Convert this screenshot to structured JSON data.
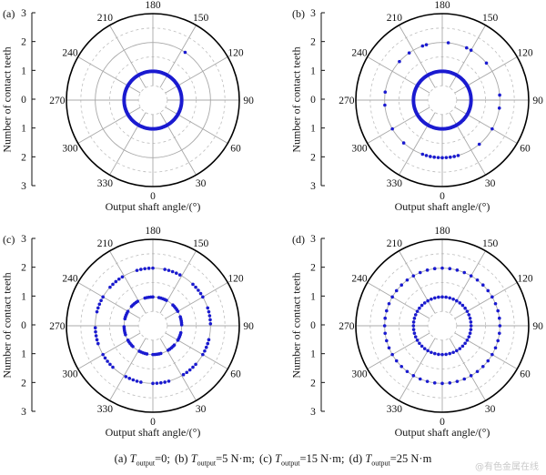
{
  "chart_data": [
    {
      "type": "scatter",
      "coordinate_system": "polar",
      "panel_label": "(a)",
      "xlabel": "Output shaft angle/(°)",
      "ylabel": "Number of contact teeth",
      "r_ticks": [
        "3",
        "2",
        "1",
        "0",
        "1",
        "2",
        "3"
      ],
      "angle_ticks": [
        "0",
        "30",
        "60",
        "90",
        "120",
        "150",
        "180",
        "210",
        "240",
        "270",
        "300",
        "330"
      ],
      "grid": true,
      "points": [
        {
          "r": 1,
          "angle_range": [
            0,
            360
          ],
          "pattern": "full"
        },
        {
          "r": 2,
          "angles": [
            146
          ]
        }
      ]
    },
    {
      "type": "scatter",
      "coordinate_system": "polar",
      "panel_label": "(b)",
      "xlabel": "Output shaft angle/(°)",
      "ylabel": "Number of contact teeth",
      "r_ticks": [
        "3",
        "2",
        "1",
        "0",
        "1",
        "2",
        "3"
      ],
      "angle_ticks": [
        "0",
        "30",
        "60",
        "90",
        "120",
        "150",
        "180",
        "210",
        "240",
        "270",
        "300",
        "330"
      ],
      "grid": true,
      "points": [
        {
          "r": 1,
          "angle_range": [
            0,
            360
          ],
          "pattern": "full"
        },
        {
          "r": 2,
          "angles": [
            -20,
            -16,
            -12,
            -8,
            -4,
            0,
            4,
            8,
            12,
            16,
            40,
            60,
            82,
            95,
            130,
            150,
            155,
            174,
            196,
            200,
            215,
            228,
            262,
            275,
            300,
            318
          ]
        }
      ]
    },
    {
      "type": "scatter",
      "coordinate_system": "polar",
      "panel_label": "(c)",
      "xlabel": "Output shaft angle/(°)",
      "ylabel": "Number of contact teeth",
      "r_ticks": [
        "3",
        "2",
        "1",
        "0",
        "1",
        "2",
        "3"
      ],
      "angle_ticks": [
        "0",
        "30",
        "60",
        "90",
        "120",
        "150",
        "180",
        "210",
        "240",
        "270",
        "300",
        "330"
      ],
      "grid": true,
      "points": [
        {
          "r": 1,
          "angle_range": [
            0,
            360
          ],
          "pattern": "dashed"
        },
        {
          "r": 2,
          "angle_range": [
            0,
            360
          ],
          "pattern": "dashed"
        }
      ]
    },
    {
      "type": "scatter",
      "coordinate_system": "polar",
      "panel_label": "(d)",
      "xlabel": "Output shaft angle/(°)",
      "ylabel": "Number of contact teeth",
      "r_ticks": [
        "3",
        "2",
        "1",
        "0",
        "1",
        "2",
        "3"
      ],
      "angle_ticks": [
        "0",
        "30",
        "60",
        "90",
        "120",
        "150",
        "180",
        "210",
        "240",
        "270",
        "300",
        "330"
      ],
      "grid": true,
      "points": [
        {
          "r": 1,
          "angle_range": [
            0,
            360
          ],
          "pattern": "dotted"
        },
        {
          "r": 2,
          "angle_range": [
            0,
            360
          ],
          "pattern": "dotted"
        }
      ]
    }
  ],
  "caption": {
    "items": [
      {
        "label": "(a)",
        "sym": "T",
        "sub": "output",
        "value": "=0;"
      },
      {
        "label": "(b)",
        "sym": "T",
        "sub": "output",
        "value": "=5  N·m;"
      },
      {
        "label": "(c)",
        "sym": "T",
        "sub": "output",
        "value": "=15  N·m;"
      },
      {
        "label": "(d)",
        "sym": "T",
        "sub": "output",
        "value": "=25 N·m"
      }
    ]
  },
  "watermark": "@有色金属在线",
  "colors": {
    "points": "#1a1ad0",
    "grid_solid": "#a8a8a8",
    "grid_dashed": "#bdbdbd",
    "frame": "#000000"
  }
}
